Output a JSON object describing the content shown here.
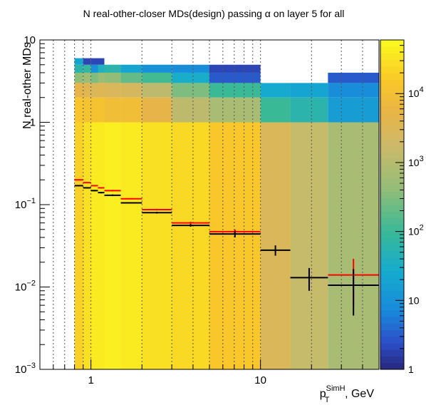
{
  "chart_data": {
    "type": "heatmap",
    "title": "N real-other-closer MDs(design) passing α on layer 5 for all",
    "xlabel": {
      "main": "p",
      "sub": "T",
      "sup": "SimH",
      "rest": ", GeV"
    },
    "ylabel": "N real-other MDs",
    "xscale": "log",
    "yscale": "log",
    "xlim": [
      0.5,
      50
    ],
    "ylim": [
      0.001,
      10
    ],
    "xticks": [
      {
        "value": 1,
        "label": "1"
      },
      {
        "value": 10,
        "label": "10"
      }
    ],
    "yticks": [
      {
        "value": 0.001,
        "base": "10",
        "exp": "−3"
      },
      {
        "value": 0.01,
        "base": "10",
        "exp": "−2"
      },
      {
        "value": 0.1,
        "base": "10",
        "exp": "−1"
      },
      {
        "value": 1,
        "base": "1",
        "exp": ""
      },
      {
        "value": 10,
        "base": "10",
        "exp": ""
      }
    ],
    "x_bin_edges": [
      0.8,
      0.9,
      1.0,
      1.1,
      1.2,
      1.5,
      2.0,
      3.0,
      5.0,
      10.0,
      15.0,
      25.0,
      50.0
    ],
    "y_bin_edges": [
      0.001,
      1,
      2,
      3,
      4,
      5,
      6
    ],
    "cell_counts": [
      [
        20000,
        30000,
        40000,
        40000,
        45000,
        40000,
        30000,
        25000,
        15000,
        3000,
        1500,
        700
      ],
      [
        14000,
        12000,
        12000,
        12000,
        9000,
        9000,
        5000,
        1200,
        700,
        100,
        60,
        15
      ],
      [
        5000,
        4000,
        3000,
        3500,
        3000,
        2500,
        1200,
        300,
        100,
        25,
        20,
        8
      ],
      [
        400,
        500,
        300,
        500,
        400,
        200,
        120,
        30,
        3,
        null,
        null,
        3
      ],
      [
        60,
        80,
        10,
        40,
        60,
        20,
        10,
        8,
        2,
        null,
        null,
        null
      ],
      [
        20,
        2,
        2,
        2,
        null,
        null,
        null,
        null,
        null,
        null,
        null,
        null
      ]
    ],
    "profile_series": [
      {
        "color": "#ff0000",
        "x_bins": [
          [
            0.8,
            0.9
          ],
          [
            0.9,
            1.0
          ],
          [
            1.0,
            1.1
          ],
          [
            1.1,
            1.2
          ],
          [
            1.2,
            1.5
          ],
          [
            1.5,
            2.0
          ],
          [
            2.0,
            3.0
          ],
          [
            3.0,
            5.0
          ],
          [
            5.0,
            10.0
          ],
          [
            25.0,
            50.0
          ]
        ],
        "values": [
          0.2,
          0.185,
          0.17,
          0.16,
          0.148,
          0.118,
          0.087,
          0.06,
          0.047,
          0.014
        ],
        "errors": [
          0.003,
          0.003,
          0.003,
          0.003,
          0.003,
          0.002,
          0.002,
          0.002,
          0.003,
          0.008
        ]
      },
      {
        "color": "#000000",
        "x_bins": [
          [
            0.8,
            0.9
          ],
          [
            0.9,
            1.0
          ],
          [
            1.0,
            1.1
          ],
          [
            1.1,
            1.2
          ],
          [
            1.2,
            1.5
          ],
          [
            1.5,
            2.0
          ],
          [
            2.0,
            3.0
          ],
          [
            3.0,
            5.0
          ],
          [
            5.0,
            10.0
          ],
          [
            10.0,
            15.0
          ],
          [
            15.0,
            25.0
          ],
          [
            25.0,
            50.0
          ]
        ],
        "values": [
          0.17,
          0.16,
          0.148,
          0.14,
          0.13,
          0.105,
          0.08,
          0.056,
          0.044,
          0.028,
          0.013,
          0.0105
        ],
        "errors": [
          0.003,
          0.003,
          0.003,
          0.003,
          0.003,
          0.002,
          0.002,
          0.002,
          0.004,
          0.004,
          0.004,
          0.006
        ]
      }
    ],
    "colorbar": {
      "scale": "log",
      "range": [
        1,
        60000
      ],
      "ticks": [
        {
          "value": 1,
          "base": "1",
          "exp": ""
        },
        {
          "value": 10,
          "base": "10",
          "exp": ""
        },
        {
          "value": 100,
          "base": "10",
          "exp": "2"
        },
        {
          "value": 1000,
          "base": "10",
          "exp": "3"
        },
        {
          "value": 10000,
          "base": "10",
          "exp": "4"
        }
      ]
    },
    "grid": true,
    "legend": "none"
  }
}
